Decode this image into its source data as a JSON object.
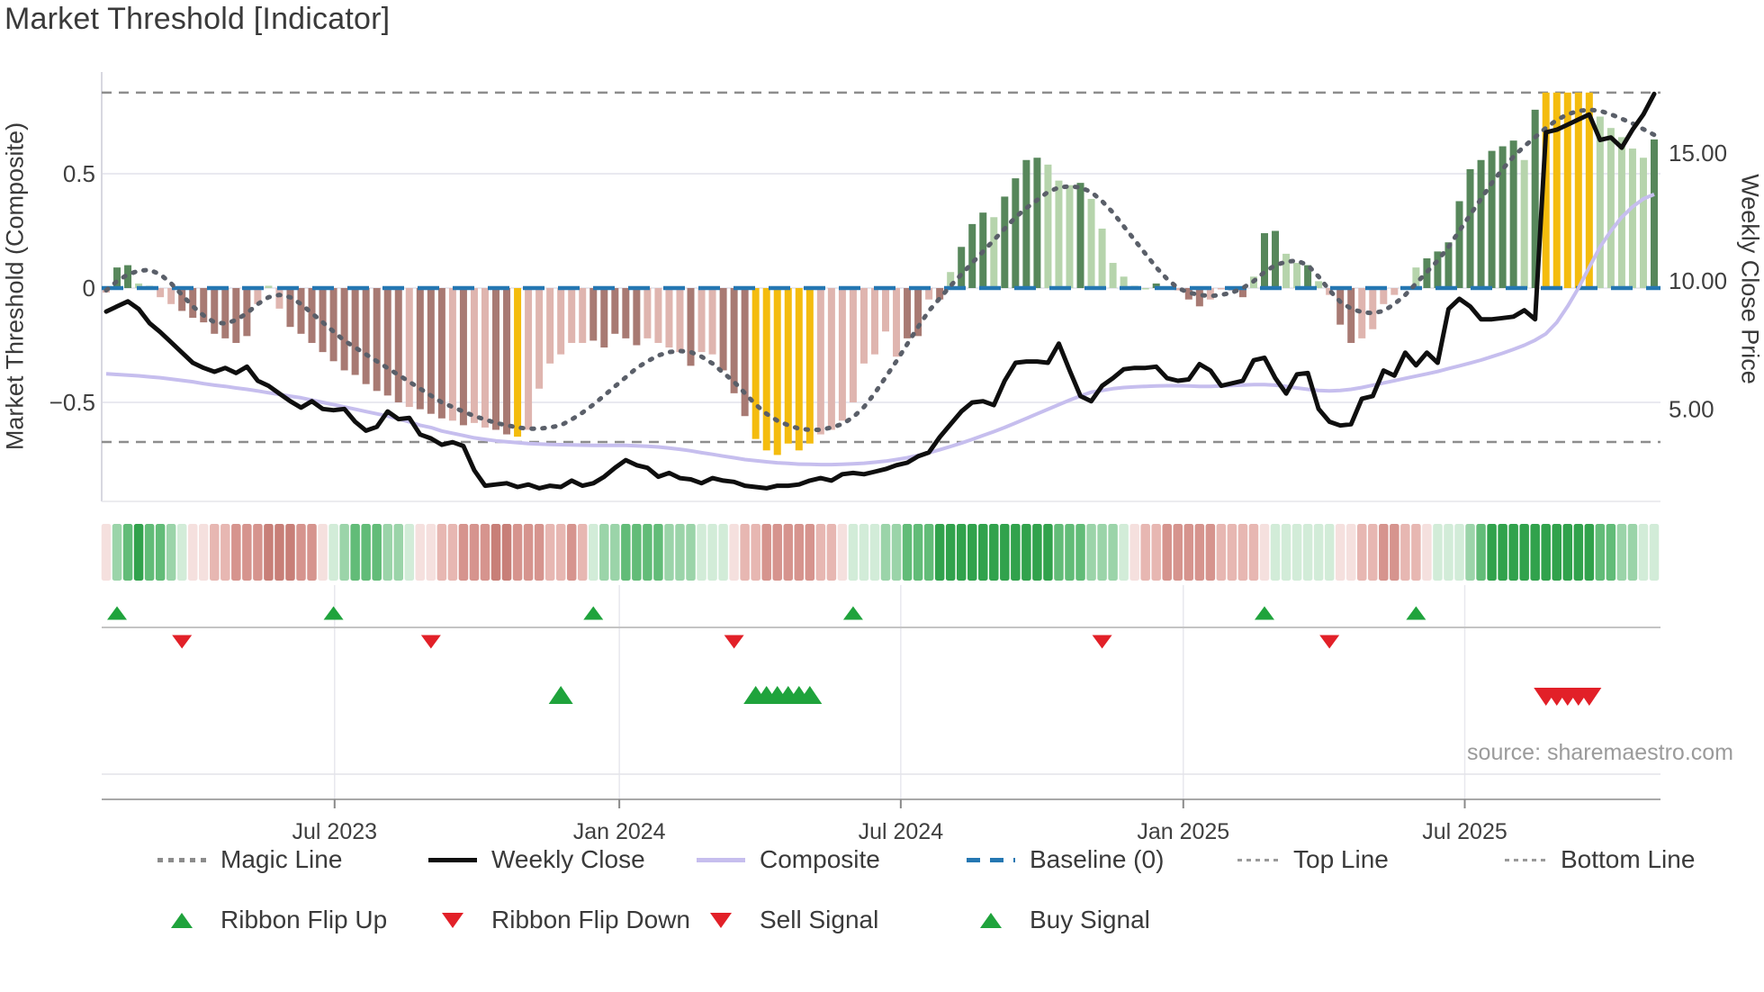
{
  "title": "Market Threshold [Indicator]",
  "source": "source: sharemaestro.com",
  "axes": {
    "left_label": "Market Threshold (Composite)",
    "right_label": "Weekly Close Price",
    "left_ticks": [
      {
        "label": "0.5",
        "v": 0.5
      },
      {
        "label": "0",
        "v": 0
      },
      {
        "label": "−0.5",
        "v": -0.5
      }
    ],
    "right_ticks": [
      {
        "label": "15.00",
        "p": 15
      },
      {
        "label": "10.00",
        "p": 10
      },
      {
        "label": "5.00",
        "p": 5
      }
    ],
    "x_ticks": [
      {
        "label": "Jul 2023",
        "i": 21.1
      },
      {
        "label": "Jan 2024",
        "i": 47.4
      },
      {
        "label": "Jul 2024",
        "i": 73.4
      },
      {
        "label": "Jan 2025",
        "i": 99.5
      },
      {
        "label": "Jul 2025",
        "i": 125.5
      }
    ]
  },
  "legend": {
    "magic": "Magic Line",
    "weekly": "Weekly Close",
    "composite": "Composite",
    "baseline": "Baseline (0)",
    "top": "Top Line",
    "bottom": "Bottom Line",
    "flip_up": "Ribbon Flip Up",
    "flip_down": "Ribbon Flip Down",
    "sell": "Sell Signal",
    "buy": "Buy Signal"
  },
  "colors": {
    "bar_dark_green": "#57875b",
    "bar_light_green": "#b6d4ac",
    "bar_dark_red": "#a87a73",
    "bar_light_red": "#dfb5af",
    "bar_yellow": "#f4bc0e",
    "ribbon_g3": "#31a24c",
    "ribbon_g2": "#62bc78",
    "ribbon_g1": "#9bd4a9",
    "ribbon_g0": "#d2ecd8",
    "ribbon_r0": "#f5e0de",
    "ribbon_r1": "#e7b7b2",
    "ribbon_r2": "#d6948e",
    "ribbon_r3": "#c87f78",
    "signal_green": "#1fa33c",
    "signal_red": "#e22028",
    "baseline_blue": "#2577b2",
    "magic_gray": "#5a5f69",
    "composite_lavender": "#c6beee",
    "close_black": "#0f0f0f",
    "threshold_dash_gray": "#8d8d8d",
    "grid": "#e9e9f0",
    "tick_text": "#3f3f3f"
  },
  "chart_data": {
    "type": "bar",
    "n_weeks": 144,
    "baseline": 0,
    "top_line": 0.855,
    "bottom_line": -0.673,
    "ylim_left": [
      -0.94,
      0.945
    ],
    "ylim_right": [
      1.4,
      18.15
    ],
    "bars": {
      "values": [
        -0.02,
        0.09,
        0.1,
        0.02,
        0.01,
        -0.04,
        -0.07,
        -0.1,
        -0.13,
        -0.15,
        -0.2,
        -0.22,
        -0.24,
        -0.21,
        -0.07,
        0.01,
        -0.09,
        -0.17,
        -0.2,
        -0.24,
        -0.28,
        -0.32,
        -0.36,
        -0.38,
        -0.42,
        -0.45,
        -0.47,
        -0.5,
        -0.52,
        -0.53,
        -0.55,
        -0.57,
        -0.58,
        -0.6,
        -0.59,
        -0.61,
        -0.62,
        -0.64,
        -0.65,
        -0.62,
        -0.44,
        -0.33,
        -0.29,
        -0.24,
        -0.24,
        -0.23,
        -0.26,
        -0.2,
        -0.22,
        -0.25,
        -0.22,
        -0.24,
        -0.26,
        -0.28,
        -0.34,
        -0.28,
        -0.29,
        -0.36,
        -0.46,
        -0.56,
        -0.66,
        -0.71,
        -0.73,
        -0.68,
        -0.71,
        -0.68,
        -0.64,
        -0.62,
        -0.58,
        -0.5,
        -0.33,
        -0.29,
        -0.19,
        -0.3,
        -0.22,
        -0.21,
        -0.05,
        -0.05,
        0.07,
        0.18,
        0.28,
        0.33,
        0.31,
        0.4,
        0.48,
        0.56,
        0.57,
        0.54,
        0.47,
        0.45,
        0.46,
        0.39,
        0.26,
        0.11,
        0.05,
        0.01,
        0.0,
        0.02,
        0.0,
        -0.01,
        -0.05,
        -0.08,
        -0.05,
        0.0,
        -0.01,
        -0.04,
        0.05,
        0.24,
        0.25,
        0.15,
        0.11,
        0.1,
        0.03,
        -0.03,
        -0.16,
        -0.24,
        -0.22,
        -0.18,
        -0.07,
        -0.03,
        0.0,
        0.09,
        0.13,
        0.16,
        0.2,
        0.38,
        0.52,
        0.56,
        0.6,
        0.62,
        0.645,
        0.56,
        0.78,
        0.855,
        0.855,
        0.855,
        0.855,
        0.855,
        0.75,
        0.7,
        0.66,
        0.61,
        0.57,
        0.65
      ],
      "color_codes": "rGGggrrRRRRRRRrgrRRRRRRRRRRRrRRRrRrrRRYrrrrrrRRRRRrrrrRrrRRRYYYYYYrrrrrrrrRRrRgGGGgGGGGgggGggggggGgrRRrrRRgGGggGgrRRrrrrggGGGGGGGGGgGYYYYYgggggG",
      "legend_note": "G=dark green, g=light green, R=dark red, r=light pink, Y=yellow highlight"
    },
    "series": [
      {
        "name": "Weekly Close",
        "axis": "right",
        "values": [
          8.8,
          9.0,
          9.2,
          8.9,
          8.35,
          8.0,
          7.6,
          7.2,
          6.8,
          6.6,
          6.45,
          6.6,
          6.4,
          6.65,
          6.1,
          5.9,
          5.6,
          5.3,
          5.05,
          5.3,
          5.0,
          4.95,
          5.0,
          4.5,
          4.15,
          4.3,
          4.9,
          4.6,
          4.65,
          4.0,
          3.85,
          3.6,
          3.7,
          3.55,
          2.6,
          2.0,
          2.05,
          2.1,
          1.95,
          2.05,
          1.9,
          2.0,
          1.95,
          2.2,
          2.0,
          2.1,
          2.35,
          2.7,
          3.0,
          2.8,
          2.7,
          2.35,
          2.5,
          2.3,
          2.25,
          2.1,
          2.3,
          2.2,
          2.15,
          2.0,
          1.95,
          1.9,
          2.0,
          2.0,
          2.05,
          2.2,
          2.3,
          2.2,
          2.45,
          2.5,
          2.45,
          2.55,
          2.65,
          2.8,
          2.9,
          3.15,
          3.3,
          3.9,
          4.4,
          4.9,
          5.25,
          5.3,
          5.15,
          6.1,
          6.8,
          6.85,
          6.85,
          6.8,
          7.55,
          6.5,
          5.5,
          5.3,
          5.9,
          6.2,
          6.55,
          6.6,
          6.6,
          6.65,
          6.2,
          6.1,
          6.15,
          6.75,
          6.5,
          5.9,
          6.0,
          6.1,
          6.9,
          7.0,
          6.2,
          5.6,
          6.35,
          6.4,
          5.0,
          4.5,
          4.35,
          4.4,
          5.4,
          5.5,
          6.5,
          6.3,
          7.2,
          6.7,
          7.2,
          6.8,
          8.9,
          9.3,
          9.0,
          8.5,
          8.5,
          8.55,
          8.6,
          8.85,
          8.5,
          15.8,
          15.9,
          16.1,
          16.3,
          16.5,
          15.5,
          15.6,
          15.2,
          15.9,
          16.5,
          17.3
        ]
      },
      {
        "name": "Composite",
        "axis": "left",
        "values": [
          -0.375,
          -0.378,
          -0.381,
          -0.384,
          -0.388,
          -0.392,
          -0.398,
          -0.404,
          -0.41,
          -0.418,
          -0.425,
          -0.43,
          -0.437,
          -0.443,
          -0.45,
          -0.458,
          -0.465,
          -0.473,
          -0.48,
          -0.49,
          -0.5,
          -0.51,
          -0.52,
          -0.53,
          -0.54,
          -0.55,
          -0.56,
          -0.573,
          -0.585,
          -0.6,
          -0.61,
          -0.625,
          -0.635,
          -0.645,
          -0.655,
          -0.662,
          -0.668,
          -0.672,
          -0.676,
          -0.68,
          -0.682,
          -0.684,
          -0.685,
          -0.686,
          -0.687,
          -0.688,
          -0.688,
          -0.688,
          -0.688,
          -0.69,
          -0.692,
          -0.695,
          -0.7,
          -0.705,
          -0.712,
          -0.72,
          -0.727,
          -0.735,
          -0.742,
          -0.75,
          -0.755,
          -0.76,
          -0.764,
          -0.767,
          -0.77,
          -0.771,
          -0.772,
          -0.772,
          -0.771,
          -0.769,
          -0.766,
          -0.762,
          -0.757,
          -0.75,
          -0.742,
          -0.732,
          -0.72,
          -0.707,
          -0.693,
          -0.678,
          -0.662,
          -0.645,
          -0.628,
          -0.61,
          -0.59,
          -0.57,
          -0.55,
          -0.53,
          -0.51,
          -0.49,
          -0.472,
          -0.455,
          -0.448,
          -0.44,
          -0.435,
          -0.432,
          -0.43,
          -0.428,
          -0.427,
          -0.427,
          -0.428,
          -0.43,
          -0.43,
          -0.428,
          -0.426,
          -0.424,
          -0.422,
          -0.422,
          -0.425,
          -0.43,
          -0.437,
          -0.443,
          -0.448,
          -0.45,
          -0.448,
          -0.443,
          -0.435,
          -0.425,
          -0.415,
          -0.405,
          -0.395,
          -0.385,
          -0.375,
          -0.365,
          -0.352,
          -0.34,
          -0.328,
          -0.315,
          -0.3,
          -0.285,
          -0.268,
          -0.25,
          -0.228,
          -0.2,
          -0.15,
          -0.08,
          0.0,
          0.09,
          0.18,
          0.25,
          0.31,
          0.355,
          0.39,
          0.41
        ]
      },
      {
        "name": "Magic Line",
        "axis": "left",
        "values": [
          -0.01,
          0.03,
          0.06,
          0.075,
          0.08,
          0.06,
          0.02,
          -0.03,
          -0.08,
          -0.12,
          -0.15,
          -0.155,
          -0.14,
          -0.11,
          -0.07,
          -0.04,
          -0.03,
          -0.04,
          -0.07,
          -0.11,
          -0.15,
          -0.19,
          -0.23,
          -0.26,
          -0.29,
          -0.32,
          -0.35,
          -0.38,
          -0.41,
          -0.44,
          -0.47,
          -0.5,
          -0.52,
          -0.54,
          -0.56,
          -0.575,
          -0.59,
          -0.6,
          -0.61,
          -0.615,
          -0.615,
          -0.61,
          -0.6,
          -0.575,
          -0.545,
          -0.51,
          -0.47,
          -0.43,
          -0.39,
          -0.35,
          -0.32,
          -0.295,
          -0.28,
          -0.275,
          -0.28,
          -0.3,
          -0.33,
          -0.37,
          -0.41,
          -0.46,
          -0.51,
          -0.55,
          -0.58,
          -0.6,
          -0.615,
          -0.62,
          -0.62,
          -0.61,
          -0.595,
          -0.565,
          -0.52,
          -0.46,
          -0.39,
          -0.32,
          -0.245,
          -0.17,
          -0.1,
          -0.045,
          0.01,
          0.06,
          0.11,
          0.16,
          0.21,
          0.26,
          0.31,
          0.35,
          0.385,
          0.42,
          0.44,
          0.445,
          0.44,
          0.42,
          0.38,
          0.33,
          0.27,
          0.21,
          0.15,
          0.09,
          0.04,
          0.0,
          -0.02,
          -0.03,
          -0.035,
          -0.03,
          -0.02,
          0.0,
          0.03,
          0.07,
          0.1,
          0.115,
          0.12,
          0.1,
          0.05,
          -0.01,
          -0.06,
          -0.09,
          -0.105,
          -0.11,
          -0.1,
          -0.07,
          -0.03,
          0.02,
          0.07,
          0.12,
          0.18,
          0.25,
          0.32,
          0.39,
          0.46,
          0.52,
          0.575,
          0.62,
          0.66,
          0.7,
          0.735,
          0.76,
          0.775,
          0.78,
          0.775,
          0.76,
          0.74,
          0.72,
          0.695,
          0.67
        ]
      }
    ],
    "ribbon_codes": "ecbabbcdeeffhhhkkkhhedcbbbccdeeffhhhkkhhhffhfdccbbbbcccdddeffhhhhhffedddccbbbaaaaaaaaaaabbbcccdeffhhhhhffffeddddddeeffhhffedddcbaaaaaaaaaabbccdd",
    "ribbon_note": "a=dark green .. d=pale green, e=pale pink .. k=dark red",
    "signals": {
      "ribbon_flip_up_weeks": [
        1,
        21,
        45,
        69,
        107,
        121
      ],
      "ribbon_flip_down_weeks": [
        7,
        30,
        58,
        92,
        113
      ],
      "buy_signal_weeks": [
        42,
        60,
        61,
        62,
        63,
        64,
        65
      ],
      "sell_signal_weeks": [
        133,
        134,
        135,
        136,
        137
      ]
    }
  }
}
